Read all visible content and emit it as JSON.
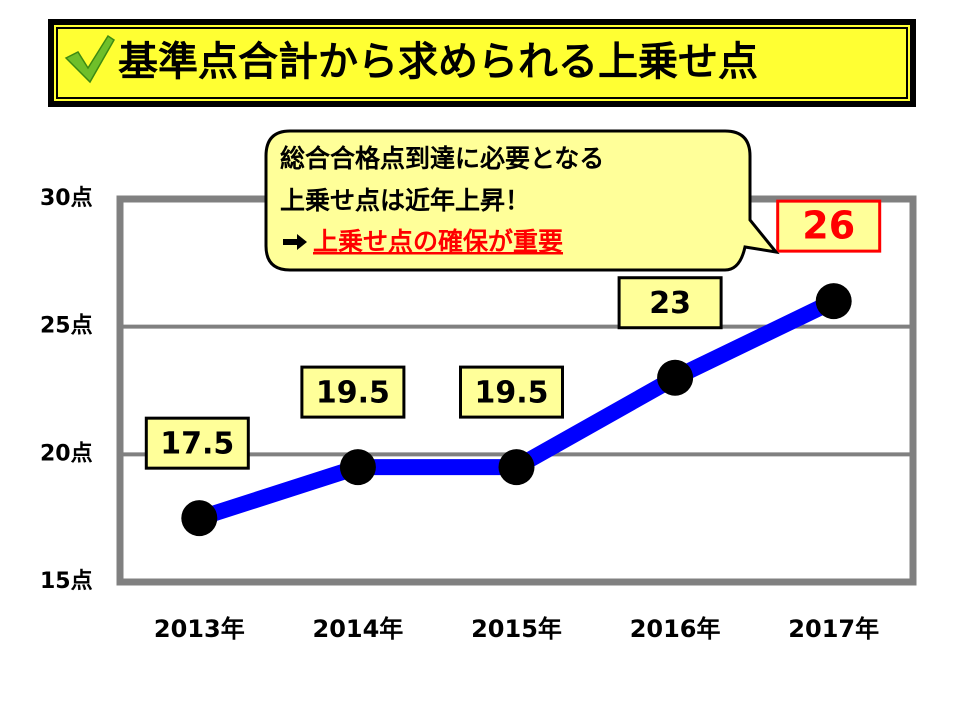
{
  "chart_data": {
    "type": "line",
    "title": "基準点合計から求められる上乗せ点",
    "annotation": [
      "総合合格点到達に必要となる",
      "上乗せ点は近年上昇！",
      "上乗せ点の確保が重要"
    ],
    "categories": [
      "2013年",
      "2014年",
      "2015年",
      "2016年",
      "2017年"
    ],
    "values": [
      17.5,
      19.5,
      19.5,
      23,
      26
    ],
    "color": "#0000ff",
    "ylim": [
      15,
      30
    ],
    "yticks": [
      {
        "value": 15,
        "label": "15点"
      },
      {
        "value": 20,
        "label": "20点"
      },
      {
        "value": 25,
        "label": "25点"
      },
      {
        "value": 30,
        "label": "30点"
      }
    ],
    "grid": true
  }
}
